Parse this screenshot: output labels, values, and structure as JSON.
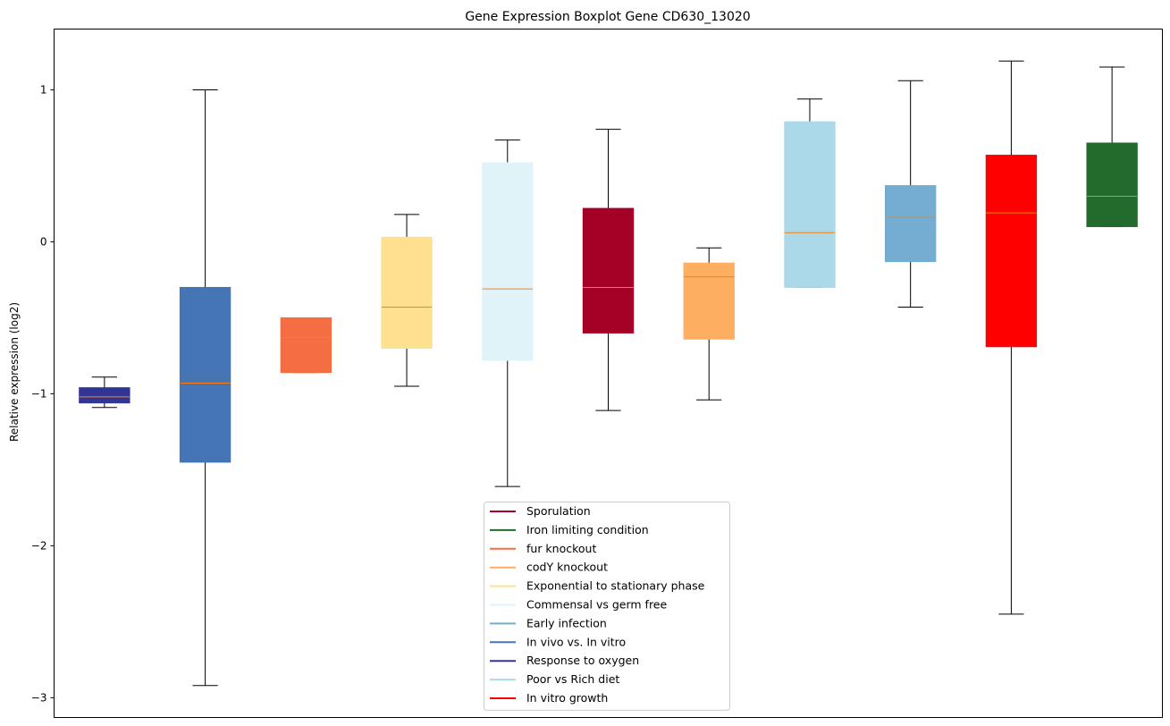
{
  "chart_data": {
    "type": "boxplot",
    "title": "Gene Expression Boxplot Gene CD630_13020",
    "xlabel": "",
    "ylabel": "Relative expression (log2)",
    "ylim": [
      -3.13,
      1.4
    ],
    "xlim": [
      0.5,
      11.5
    ],
    "yticks": [
      1,
      0,
      -1,
      -2,
      -3
    ],
    "ytick_labels": [
      "1",
      "0",
      "−1",
      "−2",
      "−3"
    ],
    "grid": false,
    "median_color": "#ff7f0e",
    "whisker_color": "#000000",
    "legend_position": "bottom-center",
    "boxes": [
      {
        "name": "Response to oxygen",
        "color": "#313695",
        "whislo": -1.09,
        "q1": -1.06,
        "med": -1.02,
        "q3": -0.96,
        "whishi": -0.89
      },
      {
        "name": "In vivo vs. In vitro",
        "color": "#4575b4",
        "whislo": -2.92,
        "q1": -1.45,
        "med": -0.93,
        "q3": -0.3,
        "whishi": 1.0
      },
      {
        "name": "fur knockout",
        "color": "#f46d43",
        "whislo": -0.86,
        "q1": -0.86,
        "med": -0.63,
        "q3": -0.5,
        "whishi": -0.5
      },
      {
        "name": "Exponential to stationary phase",
        "color": "#fee090",
        "whislo": -0.95,
        "q1": -0.7,
        "med": -0.43,
        "q3": 0.03,
        "whishi": 0.18
      },
      {
        "name": "Commensal vs germ free",
        "color": "#e0f3f8",
        "whislo": -1.61,
        "q1": -0.78,
        "med": -0.31,
        "q3": 0.52,
        "whishi": 0.67
      },
      {
        "name": "Sporulation",
        "color": "#a50026",
        "whislo": -1.11,
        "q1": -0.6,
        "med": -0.3,
        "q3": 0.22,
        "whishi": 0.74
      },
      {
        "name": "codY knockout",
        "color": "#fdae61",
        "whislo": -1.04,
        "q1": -0.64,
        "med": -0.23,
        "q3": -0.14,
        "whishi": -0.04
      },
      {
        "name": "Poor vs Rich diet",
        "color": "#abd9e9",
        "whislo": -0.3,
        "q1": -0.3,
        "med": 0.06,
        "q3": 0.79,
        "whishi": 0.94
      },
      {
        "name": "Early infection",
        "color": "#74add1",
        "whislo": -0.43,
        "q1": -0.13,
        "med": 0.16,
        "q3": 0.37,
        "whishi": 1.06
      },
      {
        "name": "In vitro growth",
        "color": "#ff0000",
        "whislo": -2.45,
        "q1": -0.69,
        "med": 0.19,
        "q3": 0.57,
        "whishi": 1.19
      },
      {
        "name": "Iron limiting condition",
        "color": "#236b2c",
        "whislo": 0.1,
        "q1": 0.1,
        "med": 0.3,
        "q3": 0.65,
        "whishi": 1.15
      }
    ],
    "legend": [
      {
        "label": "Sporulation",
        "color": "#a50026"
      },
      {
        "label": "Iron limiting condition",
        "color": "#236b2c"
      },
      {
        "label": "fur knockout",
        "color": "#f46d43"
      },
      {
        "label": "codY knockout",
        "color": "#fdae61"
      },
      {
        "label": "Exponential to stationary phase",
        "color": "#fee090"
      },
      {
        "label": "Commensal vs germ free",
        "color": "#e0f3f8"
      },
      {
        "label": "Early infection",
        "color": "#74add1"
      },
      {
        "label": "In vivo vs. In vitro",
        "color": "#4575b4"
      },
      {
        "label": "Response to oxygen",
        "color": "#313695"
      },
      {
        "label": "Poor vs Rich diet",
        "color": "#abd9e9"
      },
      {
        "label": "In vitro growth",
        "color": "#ff0000"
      }
    ]
  }
}
